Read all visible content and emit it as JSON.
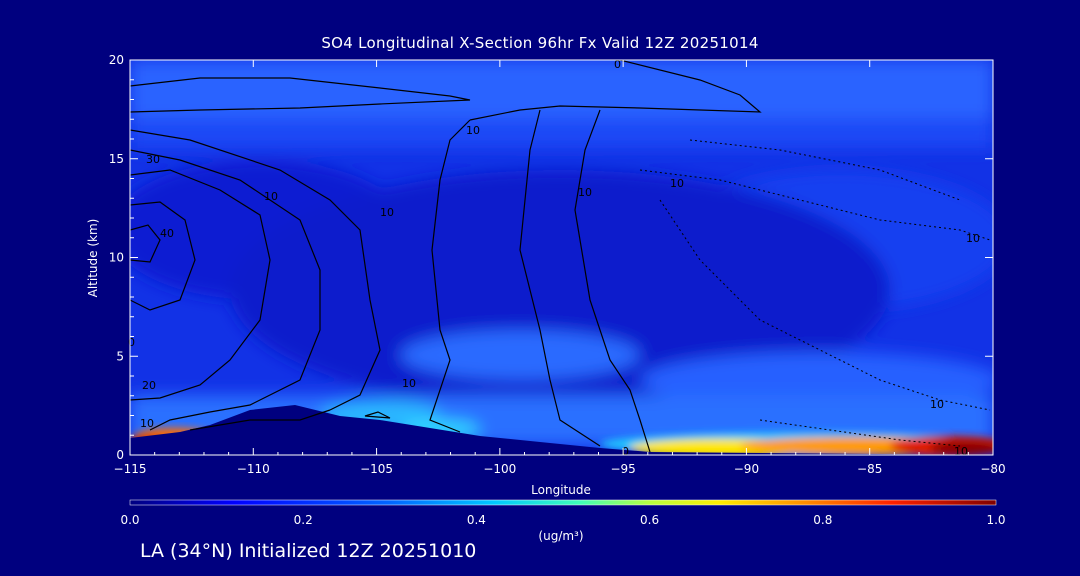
{
  "footer": "LA (34°N) Initialized 12Z 20251010",
  "chart_data": {
    "type": "heatmap",
    "title": "SO4 Longitudinal X-Section 96hr  Fx Valid 12Z 20251014",
    "xlabel": "Longitude",
    "ylabel": "Altitude (km)",
    "xlim": [
      -115,
      -80
    ],
    "ylim": [
      0,
      20
    ],
    "x_ticks": [
      -115,
      -110,
      -105,
      -100,
      -95,
      -90,
      -85,
      -80
    ],
    "x_tick_labels": [
      "−115",
      "−110",
      "−105",
      "−100",
      "−95",
      "−90",
      "−85",
      "−80"
    ],
    "y_ticks": [
      0,
      5,
      10,
      15,
      20
    ],
    "y_tick_labels": [
      "0",
      "5",
      "10",
      "15",
      "20"
    ],
    "colorbar": {
      "min": 0.0,
      "max": 1.0,
      "ticks": [
        "0.0",
        "0.2",
        "0.4",
        "0.6",
        "0.8",
        "1.0"
      ],
      "units": "(ug/m³)"
    },
    "contour_labels": [
      "0",
      "10",
      "10",
      "10",
      "10",
      "10",
      "20",
      "30",
      "40",
      "10",
      "10",
      "0",
      "0",
      "10",
      "10",
      "10"
    ],
    "colors": {
      "background": "#00007f",
      "field_low": "#0a1fd6",
      "field_mid": "#1e63ff",
      "hot": "#ff2a00",
      "peak": "#8a0000"
    }
  }
}
